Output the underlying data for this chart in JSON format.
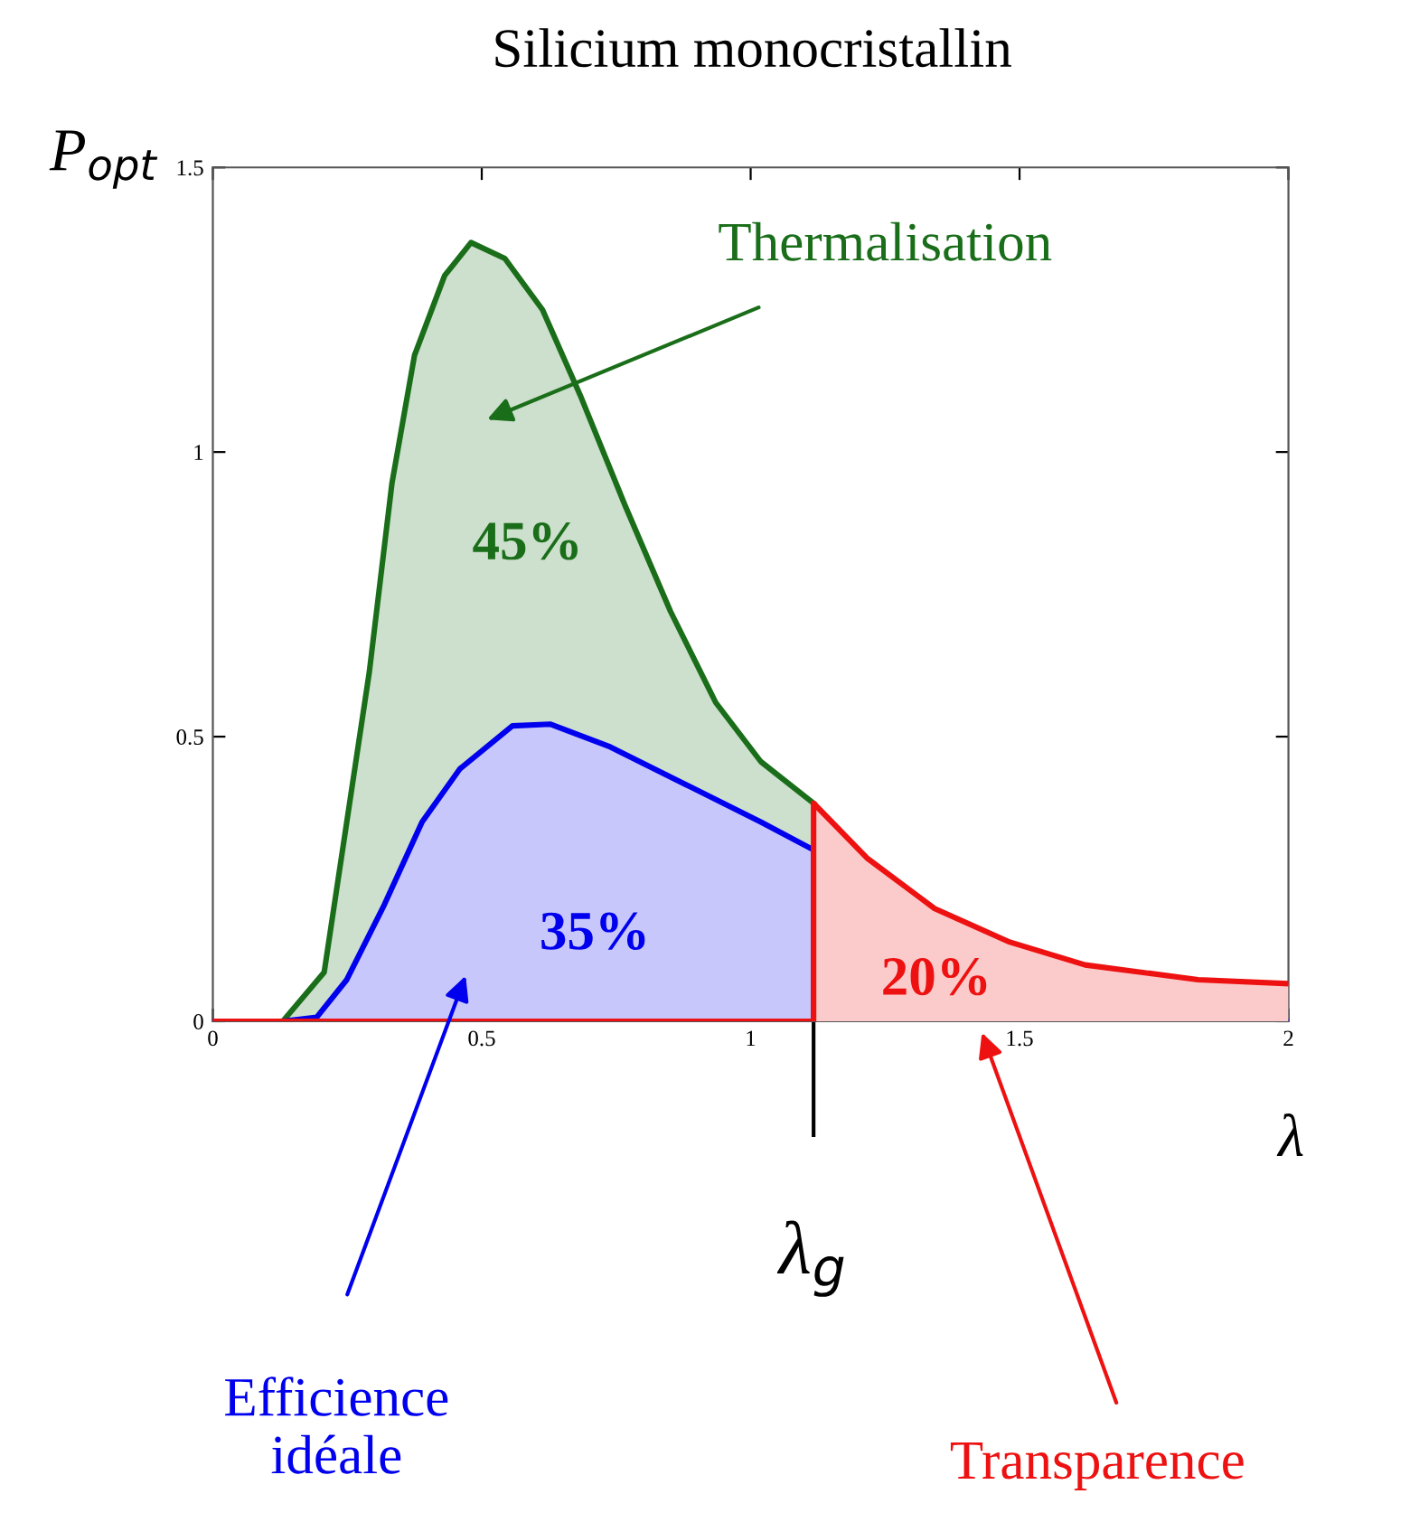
{
  "chart_data": {
    "type": "area",
    "title": "Silicium monocristallin",
    "xlabel": "λ",
    "ylabel": "P$_{opt}$",
    "xlim": [
      0,
      2
    ],
    "ylim": [
      0,
      1.5
    ],
    "xticks": [
      0,
      0.5,
      1,
      1.5,
      2
    ],
    "yticks": [
      0,
      0.5,
      1,
      1.5
    ],
    "grid": false,
    "series": [
      {
        "color": "#1a6e1a",
        "x": [
          0,
          0.13,
          0.207,
          0.249,
          0.291,
          0.333,
          0.375,
          0.431,
          0.48,
          0.543,
          0.613,
          0.683,
          0.767,
          0.851,
          0.935,
          1.019,
          1.117
        ],
        "values": [
          0,
          0,
          0.086,
          0.35,
          0.614,
          0.945,
          1.17,
          1.31,
          1.368,
          1.34,
          1.25,
          1.1,
          0.905,
          0.72,
          0.56,
          0.456,
          0.383
        ]
      },
      {
        "color": "#0000ee",
        "x": [
          0,
          0.13,
          0.193,
          0.249,
          0.319,
          0.389,
          0.459,
          0.557,
          0.627,
          0.739,
          0.879,
          1.019,
          1.117,
          1.117,
          2
        ],
        "values": [
          0,
          0,
          0.007,
          0.073,
          0.205,
          0.35,
          0.443,
          0.519,
          0.522,
          0.482,
          0.416,
          0.35,
          0.301,
          0,
          0
        ]
      },
      {
        "color": "#ee1111",
        "x": [
          0,
          1.117,
          1.117,
          1.216,
          1.342,
          1.482,
          1.622,
          1.832,
          2
        ],
        "values": [
          0,
          0,
          0.383,
          0.287,
          0.198,
          0.139,
          0.099,
          0.073,
          0.066
        ]
      }
    ],
    "annotations": [
      "Thermalisation",
      "45%",
      "35%",
      "20%",
      "Efficience\nidéale",
      "Transparence",
      {
        "text": "λ$_{g}$",
        "x": 1.117,
        "y": 0
      }
    ]
  }
}
